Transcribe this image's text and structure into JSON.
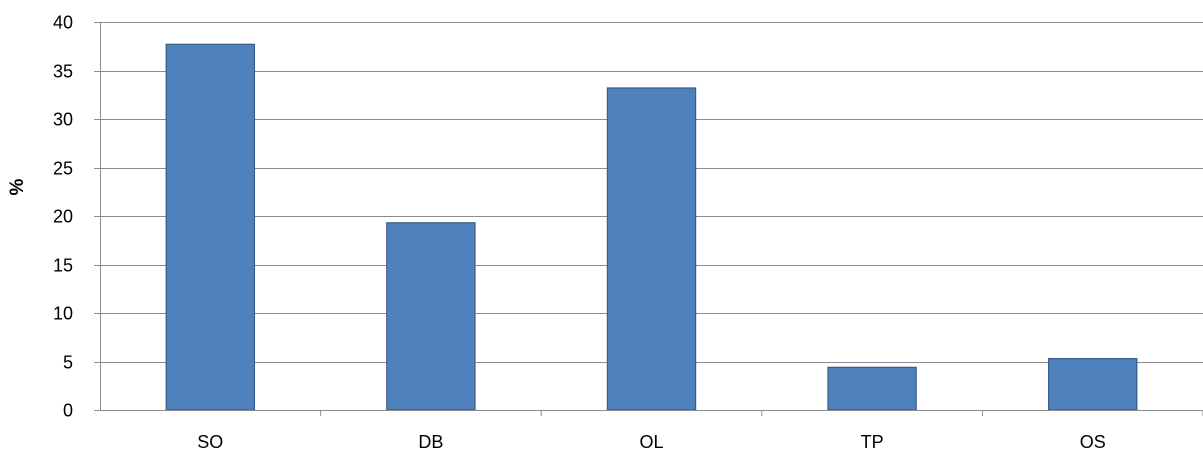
{
  "chart_data": {
    "type": "bar",
    "title": "",
    "xlabel": "",
    "ylabel": "%",
    "categories": [
      "SO",
      "DB",
      "OL",
      "TP",
      "OS"
    ],
    "series": [
      {
        "values": [
          37.7,
          19.3,
          33.2,
          4.4,
          5.3
        ]
      }
    ],
    "ylim": [
      0,
      40
    ],
    "yticks": [
      0,
      5,
      10,
      15,
      20,
      25,
      30,
      35,
      40
    ],
    "grid": true,
    "legend": "none",
    "colors": {
      "bar_fill": "#4f81bd",
      "bar_border": "#385d8a",
      "gridline": "#8c8c8c"
    }
  }
}
